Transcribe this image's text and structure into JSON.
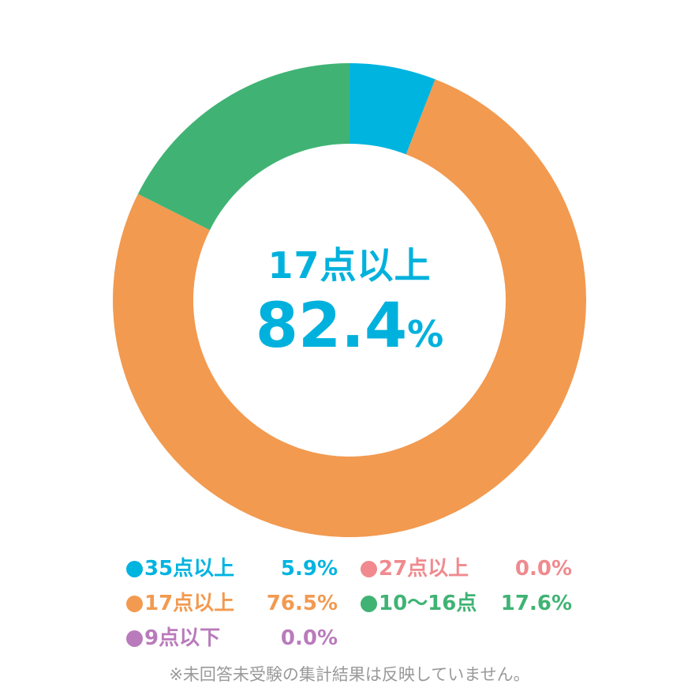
{
  "chart_data": {
    "type": "pie",
    "categories": [
      "35点以上",
      "27点以上",
      "17点以上",
      "10～16点",
      "9点以下"
    ],
    "values": [
      5.9,
      0.0,
      76.5,
      17.6,
      0.0
    ],
    "value_labels": [
      "5.9%",
      "0.0%",
      "76.5%",
      "17.6%",
      "0.0%"
    ],
    "colors": [
      "#00b4e0",
      "#f08a8e",
      "#f29a50",
      "#40b374",
      "#b97bbb"
    ],
    "draw_order": [
      0,
      2,
      3
    ],
    "center_title": "17点以上",
    "center_value": "82.4",
    "center_unit": "%",
    "center_color": "#00b1dd",
    "note": "※未回答未受験の集計結果は反映していません。"
  }
}
